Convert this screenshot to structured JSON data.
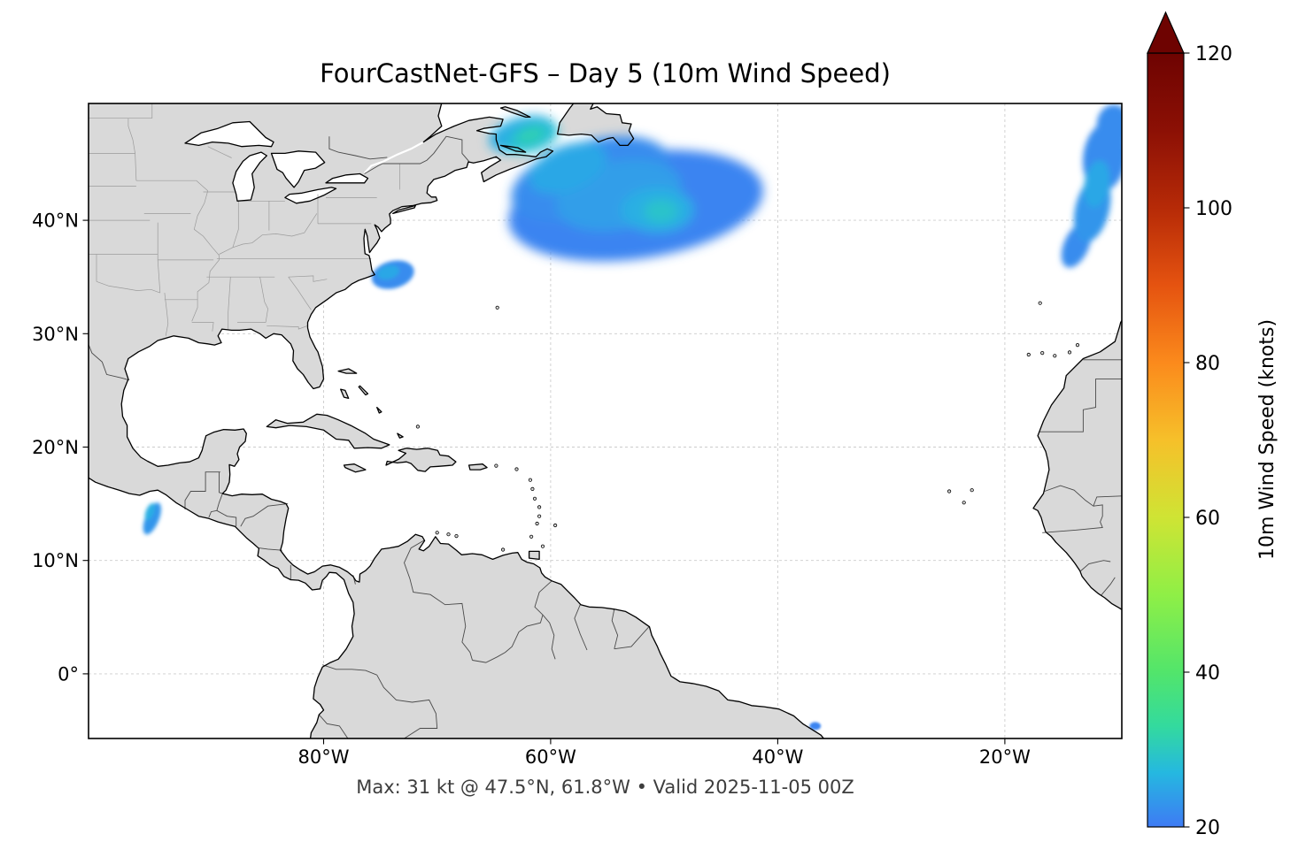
{
  "title": "FourCastNet-GFS – Day 5 (10m Wind Speed)",
  "caption": "Max: 31 kt @ 47.5°N, 61.8°W • Valid 2025-11-05 00Z",
  "colorbar": {
    "label": "10m Wind Speed (knots)",
    "min": 20,
    "max": 120,
    "extend": "max",
    "ticks": [
      20,
      40,
      60,
      80,
      100,
      120
    ],
    "stops": [
      {
        "v": 20,
        "c": "#3e7bf4"
      },
      {
        "v": 27,
        "c": "#25b8e0"
      },
      {
        "v": 33,
        "c": "#33da9e"
      },
      {
        "v": 40,
        "c": "#52e56b"
      },
      {
        "v": 50,
        "c": "#8fef46"
      },
      {
        "v": 60,
        "c": "#cfe434"
      },
      {
        "v": 70,
        "c": "#f6c02a"
      },
      {
        "v": 80,
        "c": "#fb8a1c"
      },
      {
        "v": 90,
        "c": "#e55310"
      },
      {
        "v": 100,
        "c": "#b62a07"
      },
      {
        "v": 110,
        "c": "#8c1005"
      },
      {
        "v": 120,
        "c": "#6e0301"
      }
    ]
  },
  "axes": {
    "extent": {
      "lon": [
        -100.7,
        -9.7
      ],
      "lat": [
        -5.7,
        50.3
      ]
    },
    "x_ticks": [
      {
        "value": -80,
        "label": "80°W"
      },
      {
        "value": -60,
        "label": "60°W"
      },
      {
        "value": -40,
        "label": "40°W"
      },
      {
        "value": -20,
        "label": "20°W"
      }
    ],
    "y_ticks": [
      {
        "value": 40,
        "label": "40°N"
      },
      {
        "value": 30,
        "label": "30°N"
      },
      {
        "value": 20,
        "label": "20°N"
      },
      {
        "value": 10,
        "label": "10°N"
      },
      {
        "value": 0,
        "label": "0°"
      }
    ]
  },
  "chart_data": {
    "type": "heatmap",
    "title": "FourCastNet-GFS – Day 5 (10m Wind Speed)",
    "model": "FourCastNet-GFS",
    "lead_time": "Day 5",
    "variable": "10m Wind Speed",
    "units": "knots",
    "valid_time": "2025-11-05 00Z",
    "max_value": {
      "knots": 31,
      "lat": "47.5°N",
      "lon": "61.8°W"
    },
    "map_extent": {
      "lon": [
        -100.7,
        -9.7
      ],
      "lat": [
        -5.7,
        50.3
      ]
    },
    "grid": true,
    "colorbar_range": [
      20,
      120
    ],
    "colorbar_ticks": [
      20,
      40,
      60,
      80,
      100,
      120
    ],
    "colorbar_extend": "max",
    "wind_features": [
      {
        "id": "northwest-atlantic-storm",
        "description": "Broad 20-31 kt wind maximum east of Nova Scotia and over the Gulf of St. Lawrence",
        "peak_kt": 31,
        "cells": [
          {
            "lon": -52.5,
            "lat": 41.3,
            "rx": 11.3,
            "ry": 4.7,
            "rot": -8,
            "kt": 21
          },
          {
            "lon": -56.5,
            "lat": 43.6,
            "rx": 7.2,
            "ry": 3.4,
            "rot": -16,
            "kt": 22
          },
          {
            "lon": -54.0,
            "lat": 42.2,
            "rx": 5.6,
            "ry": 3.0,
            "rot": -12,
            "kt": 24
          },
          {
            "lon": -58.5,
            "lat": 44.6,
            "rx": 3.6,
            "ry": 2.0,
            "rot": -22,
            "kt": 25
          },
          {
            "lon": -62.5,
            "lat": 47.6,
            "rx": 3.0,
            "ry": 1.5,
            "rot": -15,
            "kt": 26
          },
          {
            "lon": -50.6,
            "lat": 40.9,
            "rx": 3.2,
            "ry": 2.0,
            "rot": 0,
            "kt": 26
          },
          {
            "lon": -61.6,
            "lat": 47.3,
            "rx": 2.4,
            "ry": 1.2,
            "rot": -20,
            "kt": 28
          },
          {
            "lon": -50.3,
            "lat": 40.8,
            "rx": 1.5,
            "ry": 1.0,
            "rot": 0,
            "kt": 29
          },
          {
            "lon": -61.8,
            "lat": 47.5,
            "rx": 1.3,
            "ry": 0.7,
            "rot": -20,
            "kt": 31
          }
        ]
      },
      {
        "id": "east-atlantic-band",
        "description": "20-25 kt band along the eastern map edge off Iberia / Biscay",
        "peak_kt": 25,
        "cells": [
          {
            "lon": -10.4,
            "lat": 48.4,
            "rx": 1.5,
            "ry": 1.8,
            "rot": 0,
            "kt": 22
          },
          {
            "lon": -11.2,
            "lat": 45.6,
            "rx": 1.9,
            "ry": 3.1,
            "rot": 8,
            "kt": 22
          },
          {
            "lon": -12.3,
            "lat": 41.0,
            "rx": 1.5,
            "ry": 3.0,
            "rot": 14,
            "kt": 23
          },
          {
            "lon": -11.9,
            "lat": 43.2,
            "rx": 1.1,
            "ry": 2.1,
            "rot": 10,
            "kt": 25
          },
          {
            "lon": -13.7,
            "lat": 37.8,
            "rx": 1.1,
            "ry": 2.1,
            "rot": 24,
            "kt": 22
          }
        ]
      },
      {
        "id": "cape-hatteras-patch",
        "description": "Small 20-25 kt patch off Cape Hatteras",
        "peak_kt": 25,
        "cells": [
          {
            "lon": -73.9,
            "lat": 35.2,
            "rx": 1.9,
            "ry": 1.2,
            "rot": -15,
            "kt": 22
          },
          {
            "lon": -74.3,
            "lat": 35.4,
            "rx": 1.0,
            "ry": 0.6,
            "rot": -15,
            "kt": 25
          }
        ]
      },
      {
        "id": "tehuantepec-gap-wind",
        "description": "Narrow 20-26 kt gap-wind jet in the Gulf of Tehuantepec",
        "peak_kt": 26,
        "cells": [
          {
            "lon": -95.1,
            "lat": 13.7,
            "rx": 0.6,
            "ry": 1.5,
            "rot": 22,
            "kt": 23
          },
          {
            "lon": -95.3,
            "lat": 14.3,
            "rx": 0.35,
            "ry": 0.8,
            "rot": 22,
            "kt": 26
          }
        ]
      },
      {
        "id": "ne-brazil-offshore-speck",
        "description": "Tiny ~20 kt speck offshore of northeast Brazil",
        "peak_kt": 21,
        "cells": [
          {
            "lon": -36.7,
            "lat": -4.6,
            "rx": 0.5,
            "ry": 0.35,
            "rot": 0,
            "kt": 21
          }
        ]
      }
    ]
  }
}
